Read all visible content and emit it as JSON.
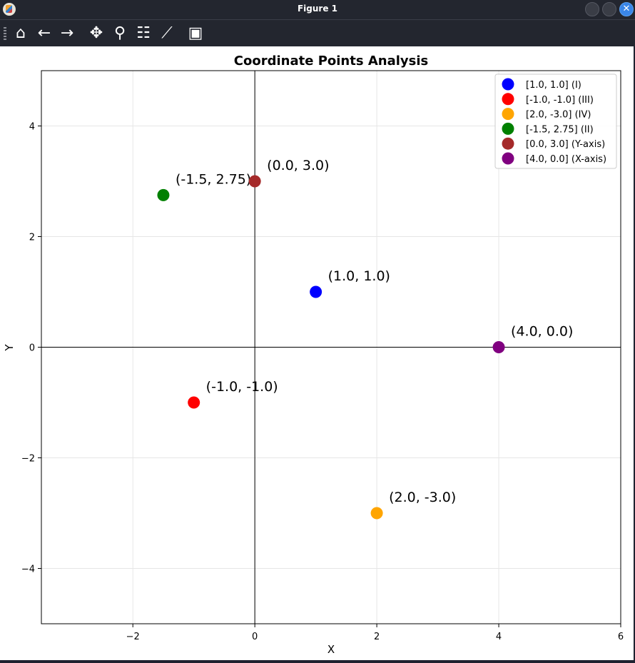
{
  "window": {
    "title": "Figure 1",
    "close_glyph": "✕"
  },
  "toolbar": {
    "items": [
      {
        "name": "home-icon",
        "glyph": "⌂"
      },
      {
        "name": "back-icon",
        "glyph": "←"
      },
      {
        "name": "forward-icon",
        "glyph": "→"
      },
      {
        "name": "pan-icon",
        "glyph": "✥"
      },
      {
        "name": "zoom-icon",
        "glyph": "⚲"
      },
      {
        "name": "configure-subplots-icon",
        "glyph": "☷"
      },
      {
        "name": "edit-axis-icon",
        "glyph": "⟋"
      },
      {
        "name": "save-icon",
        "glyph": "▣"
      }
    ]
  },
  "chart_data": {
    "type": "scatter",
    "title": "Coordinate Points Analysis",
    "xlabel": "X",
    "ylabel": "Y",
    "xlim": [
      -3.5,
      6
    ],
    "ylim": [
      -5,
      5
    ],
    "xticks": [
      -2,
      0,
      2,
      4,
      6
    ],
    "yticks": [
      -4,
      -2,
      0,
      2,
      4
    ],
    "xtick_labels": [
      "−2",
      "0",
      "2",
      "4",
      "6"
    ],
    "ytick_labels": [
      "−4",
      "−2",
      "0",
      "2",
      "4"
    ],
    "grid": true,
    "axis_lines_at_zero": true,
    "legend_position": "top-right",
    "points": [
      {
        "x": 1.0,
        "y": 1.0,
        "color": "#0000ff",
        "legend": "[1.0, 1.0] (I)",
        "annotation": "(1.0, 1.0)"
      },
      {
        "x": -1.0,
        "y": -1.0,
        "color": "#ff0000",
        "legend": "[-1.0, -1.0] (III)",
        "annotation": "(-1.0, -1.0)"
      },
      {
        "x": 2.0,
        "y": -3.0,
        "color": "#ffa500",
        "legend": "[2.0, -3.0] (IV)",
        "annotation": "(2.0, -3.0)"
      },
      {
        "x": -1.5,
        "y": 2.75,
        "color": "#008000",
        "legend": "[-1.5, 2.75] (II)",
        "annotation": "(-1.5, 2.75)"
      },
      {
        "x": 0.0,
        "y": 3.0,
        "color": "#a52a2a",
        "legend": "[0.0, 3.0] (Y-axis)",
        "annotation": "(0.0, 3.0)"
      },
      {
        "x": 4.0,
        "y": 0.0,
        "color": "#800080",
        "legend": "[4.0, 0.0] (X-axis)",
        "annotation": "(4.0, 0.0)"
      }
    ]
  }
}
